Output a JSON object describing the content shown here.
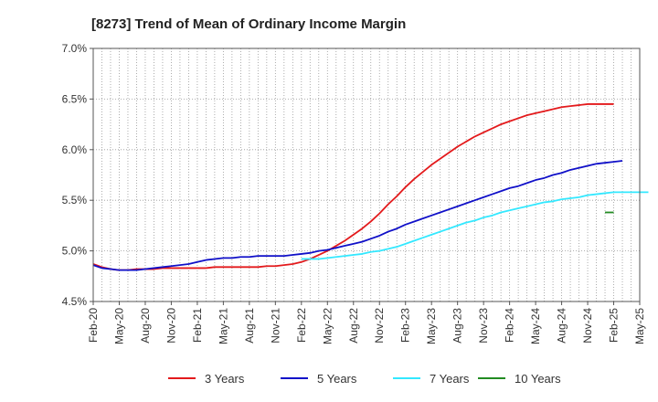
{
  "chart_data": {
    "type": "line",
    "title": "[8273]  Trend of Mean of Ordinary Income Margin",
    "xlabel": "",
    "ylabel": "",
    "ylim": [
      4.5,
      7.0
    ],
    "y_ticks": [
      4.5,
      5.0,
      5.5,
      6.0,
      6.5,
      7.0
    ],
    "y_tick_labels": [
      "4.5%",
      "5.0%",
      "5.5%",
      "6.0%",
      "6.5%",
      "7.0%"
    ],
    "x_ticks": [
      "Feb-20",
      "May-20",
      "Aug-20",
      "Nov-20",
      "Feb-21",
      "May-21",
      "Aug-21",
      "Nov-21",
      "Feb-22",
      "May-22",
      "Aug-22",
      "Nov-22",
      "Feb-23",
      "May-23",
      "Aug-23",
      "Nov-23",
      "Feb-24",
      "May-24",
      "Aug-24",
      "Nov-24",
      "Feb-25",
      "May-25"
    ],
    "grid": true,
    "legend_position": "bottom",
    "colors": {
      "3 Years": "#e31a1c",
      "5 Years": "#1010c8",
      "7 Years": "#33e8ff",
      "10 Years": "#228b22"
    },
    "series": [
      {
        "name": "3 Years",
        "color": "#e31a1c",
        "start": "Feb-20",
        "values": [
          4.87,
          4.84,
          4.82,
          4.81,
          4.81,
          4.82,
          4.82,
          4.82,
          4.83,
          4.83,
          4.83,
          4.83,
          4.83,
          4.83,
          4.84,
          4.84,
          4.84,
          4.84,
          4.84,
          4.84,
          4.85,
          4.85,
          4.86,
          4.87,
          4.89,
          4.92,
          4.96,
          5.0,
          5.05,
          5.1,
          5.16,
          5.22,
          5.29,
          5.37,
          5.46,
          5.54,
          5.63,
          5.71,
          5.78,
          5.85,
          5.91,
          5.97,
          6.03,
          6.08,
          6.13,
          6.17,
          6.21,
          6.25,
          6.28,
          6.31,
          6.34,
          6.36,
          6.38,
          6.4,
          6.42,
          6.43,
          6.44,
          6.45,
          6.45,
          6.45,
          6.45
        ]
      },
      {
        "name": "5 Years",
        "color": "#1010c8",
        "start": "Feb-20",
        "values": [
          4.86,
          4.83,
          4.82,
          4.81,
          4.81,
          4.81,
          4.82,
          4.83,
          4.84,
          4.85,
          4.86,
          4.87,
          4.89,
          4.91,
          4.92,
          4.93,
          4.93,
          4.94,
          4.94,
          4.95,
          4.95,
          4.95,
          4.95,
          4.96,
          4.97,
          4.98,
          5.0,
          5.01,
          5.03,
          5.05,
          5.07,
          5.09,
          5.12,
          5.15,
          5.19,
          5.22,
          5.26,
          5.29,
          5.32,
          5.35,
          5.38,
          5.41,
          5.44,
          5.47,
          5.5,
          5.53,
          5.56,
          5.59,
          5.62,
          5.64,
          5.67,
          5.7,
          5.72,
          5.75,
          5.77,
          5.8,
          5.82,
          5.84,
          5.86,
          5.87,
          5.88,
          5.89
        ]
      },
      {
        "name": "7 Years",
        "color": "#33e8ff",
        "start": "Feb-22",
        "values": [
          4.92,
          4.92,
          4.92,
          4.93,
          4.94,
          4.95,
          4.96,
          4.97,
          4.99,
          5.0,
          5.02,
          5.04,
          5.07,
          5.1,
          5.13,
          5.16,
          5.19,
          5.22,
          5.25,
          5.28,
          5.3,
          5.33,
          5.35,
          5.38,
          5.4,
          5.42,
          5.44,
          5.46,
          5.48,
          5.49,
          5.51,
          5.52,
          5.53,
          5.55,
          5.56,
          5.57,
          5.58,
          5.58,
          5.58,
          5.58,
          5.58
        ]
      },
      {
        "name": "10 Years",
        "color": "#228b22",
        "start": "Jan-25",
        "values": [
          5.38,
          5.38
        ]
      }
    ]
  }
}
